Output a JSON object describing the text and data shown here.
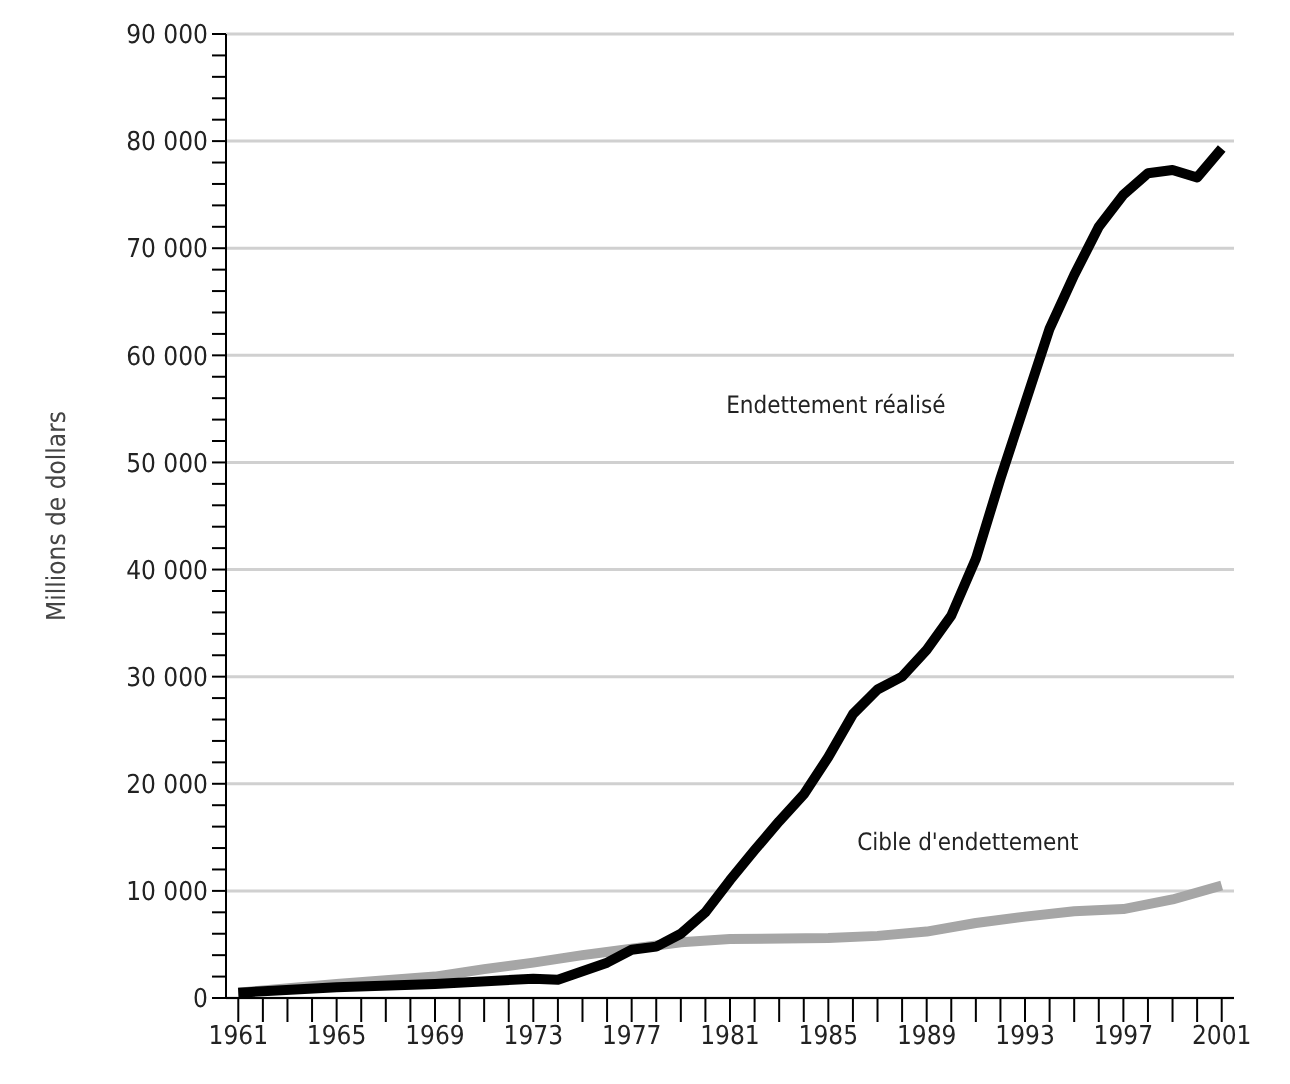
{
  "chart_data": {
    "type": "line",
    "ylabel": "Millions de dollars",
    "xlim": [
      1960.5,
      2001.5
    ],
    "xticks": [
      {
        "value": 1961,
        "label": "1961"
      },
      {
        "value": 1962,
        "label": null
      },
      {
        "value": 1963,
        "label": null
      },
      {
        "value": 1964,
        "label": null
      },
      {
        "value": 1965,
        "label": "1965"
      },
      {
        "value": 1966,
        "label": null
      },
      {
        "value": 1967,
        "label": null
      },
      {
        "value": 1968,
        "label": null
      },
      {
        "value": 1969,
        "label": "1969"
      },
      {
        "value": 1970,
        "label": null
      },
      {
        "value": 1971,
        "label": null
      },
      {
        "value": 1972,
        "label": null
      },
      {
        "value": 1973,
        "label": "1973"
      },
      {
        "value": 1974,
        "label": null
      },
      {
        "value": 1975,
        "label": null
      },
      {
        "value": 1976,
        "label": null
      },
      {
        "value": 1977,
        "label": "1977"
      },
      {
        "value": 1978,
        "label": null
      },
      {
        "value": 1979,
        "label": null
      },
      {
        "value": 1980,
        "label": null
      },
      {
        "value": 1981,
        "label": "1981"
      },
      {
        "value": 1982,
        "label": null
      },
      {
        "value": 1983,
        "label": null
      },
      {
        "value": 1984,
        "label": null
      },
      {
        "value": 1985,
        "label": "1985"
      },
      {
        "value": 1986,
        "label": null
      },
      {
        "value": 1987,
        "label": null
      },
      {
        "value": 1988,
        "label": null
      },
      {
        "value": 1989,
        "label": "1989"
      },
      {
        "value": 1990,
        "label": null
      },
      {
        "value": 1991,
        "label": null
      },
      {
        "value": 1992,
        "label": null
      },
      {
        "value": 1993,
        "label": "1993"
      },
      {
        "value": 1994,
        "label": null
      },
      {
        "value": 1995,
        "label": null
      },
      {
        "value": 1996,
        "label": null
      },
      {
        "value": 1997,
        "label": "1997"
      },
      {
        "value": 1998,
        "label": null
      },
      {
        "value": 1999,
        "label": null
      },
      {
        "value": 2000,
        "label": null
      },
      {
        "value": 2001,
        "label": "2001"
      }
    ],
    "ylim": [
      0,
      90000
    ],
    "yticks": [
      {
        "value": 0,
        "label": "0"
      },
      {
        "value": 2000,
        "label": null
      },
      {
        "value": 4000,
        "label": null
      },
      {
        "value": 6000,
        "label": null
      },
      {
        "value": 8000,
        "label": null
      },
      {
        "value": 10000,
        "label": "10 000"
      },
      {
        "value": 12000,
        "label": null
      },
      {
        "value": 14000,
        "label": null
      },
      {
        "value": 16000,
        "label": null
      },
      {
        "value": 18000,
        "label": null
      },
      {
        "value": 20000,
        "label": "20 000"
      },
      {
        "value": 22000,
        "label": null
      },
      {
        "value": 24000,
        "label": null
      },
      {
        "value": 26000,
        "label": null
      },
      {
        "value": 28000,
        "label": null
      },
      {
        "value": 30000,
        "label": "30 000"
      },
      {
        "value": 32000,
        "label": null
      },
      {
        "value": 34000,
        "label": null
      },
      {
        "value": 36000,
        "label": null
      },
      {
        "value": 38000,
        "label": null
      },
      {
        "value": 40000,
        "label": "40 000"
      },
      {
        "value": 42000,
        "label": null
      },
      {
        "value": 44000,
        "label": null
      },
      {
        "value": 46000,
        "label": null
      },
      {
        "value": 48000,
        "label": null
      },
      {
        "value": 50000,
        "label": "50 000"
      },
      {
        "value": 52000,
        "label": null
      },
      {
        "value": 54000,
        "label": null
      },
      {
        "value": 56000,
        "label": null
      },
      {
        "value": 58000,
        "label": null
      },
      {
        "value": 60000,
        "label": "60 000"
      },
      {
        "value": 62000,
        "label": null
      },
      {
        "value": 64000,
        "label": null
      },
      {
        "value": 66000,
        "label": null
      },
      {
        "value": 68000,
        "label": null
      },
      {
        "value": 70000,
        "label": "70 000"
      },
      {
        "value": 72000,
        "label": null
      },
      {
        "value": 74000,
        "label": null
      },
      {
        "value": 76000,
        "label": null
      },
      {
        "value": 78000,
        "label": null
      },
      {
        "value": 80000,
        "label": "80 000"
      },
      {
        "value": 82000,
        "label": null
      },
      {
        "value": 84000,
        "label": null
      },
      {
        "value": 86000,
        "label": null
      },
      {
        "value": 88000,
        "label": null
      },
      {
        "value": 90000,
        "label": "90 000"
      }
    ],
    "grid": "y",
    "series": [
      {
        "name": "Cible d'endettement",
        "color": "#a6a6a6",
        "x": [
          1961,
          1965,
          1969,
          1971,
          1973,
          1975,
          1977,
          1979,
          1981,
          1985,
          1987,
          1989,
          1991,
          1993,
          1995,
          1997,
          1999,
          2001
        ],
        "values": [
          500,
          1300,
          2000,
          2700,
          3300,
          4000,
          4600,
          5200,
          5500,
          5600,
          5800,
          6200,
          7000,
          7600,
          8100,
          8300,
          9200,
          10500
        ]
      },
      {
        "name": "Endettement réalisé",
        "color": "#000000",
        "x": [
          1961,
          1965,
          1969,
          1973,
          1974,
          1975,
          1976,
          1977,
          1978,
          1979,
          1980,
          1981,
          1982,
          1983,
          1984,
          1985,
          1986,
          1987,
          1988,
          1989,
          1990,
          1991,
          1992,
          1993,
          1994,
          1995,
          1996,
          1997,
          1998,
          1999,
          2000,
          2001
        ],
        "values": [
          500,
          1000,
          1300,
          1800,
          1700,
          2500,
          3300,
          4500,
          4800,
          6000,
          8000,
          11000,
          13800,
          16500,
          19000,
          22500,
          26500,
          28800,
          30000,
          32500,
          35700,
          41000,
          48500,
          55500,
          62500,
          67500,
          72000,
          75000,
          77000,
          77300,
          76600,
          79300
        ]
      }
    ]
  }
}
